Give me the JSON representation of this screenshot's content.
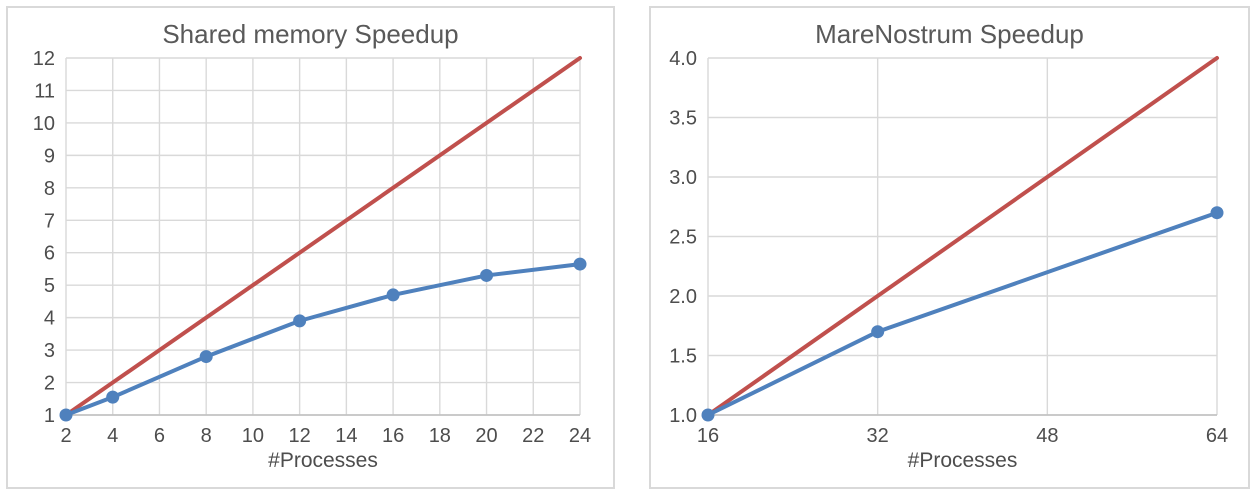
{
  "styles": {
    "grid_color": "#d9d9d9",
    "axis_color": "#bfbfbf",
    "tick_color": "#4d4d4d",
    "title_color": "#595959",
    "ideal_line_color": "#c0504d",
    "measured_line_color": "#4f81bd",
    "panel_border_color": "#d9d9d9",
    "background_color": "#ffffff"
  },
  "chart_data": [
    {
      "type": "line",
      "title": "Shared memory Speedup",
      "xlabel": "#Processes",
      "ylabel": "",
      "xlim": [
        2,
        24
      ],
      "ylim": [
        1,
        12
      ],
      "grid": true,
      "legend": "none",
      "x_ticks": [
        "2",
        "4",
        "6",
        "8",
        "10",
        "12",
        "14",
        "16",
        "18",
        "20",
        "22",
        "24"
      ],
      "y_ticks": [
        "1",
        "2",
        "3",
        "4",
        "5",
        "6",
        "7",
        "8",
        "9",
        "10",
        "11",
        "12"
      ],
      "series": [
        {
          "role": "ideal-linear-speedup",
          "color": "#c0504d",
          "marker": false,
          "x": [
            2,
            24
          ],
          "y": [
            1,
            12
          ]
        },
        {
          "role": "measured-speedup",
          "color": "#4f81bd",
          "marker": true,
          "x": [
            2,
            4,
            8,
            12,
            16,
            20,
            24
          ],
          "y": [
            1.0,
            1.55,
            2.8,
            3.9,
            4.7,
            5.3,
            5.65
          ]
        }
      ]
    },
    {
      "type": "line",
      "title": "MareNostrum Speedup",
      "xlabel": "#Processes",
      "ylabel": "",
      "xlim": [
        16,
        64
      ],
      "ylim": [
        1,
        4
      ],
      "grid": true,
      "legend": "none",
      "x_ticks": [
        "16",
        "32",
        "48",
        "64"
      ],
      "y_ticks": [
        "1.0",
        "1.5",
        "2.0",
        "2.5",
        "3.0",
        "3.5",
        "4.0"
      ],
      "series": [
        {
          "role": "ideal-linear-speedup",
          "color": "#c0504d",
          "marker": false,
          "x": [
            16,
            64
          ],
          "y": [
            1,
            4
          ]
        },
        {
          "role": "measured-speedup",
          "color": "#4f81bd",
          "marker": true,
          "x": [
            16,
            32,
            64
          ],
          "y": [
            1.0,
            1.7,
            2.7
          ]
        }
      ]
    }
  ]
}
